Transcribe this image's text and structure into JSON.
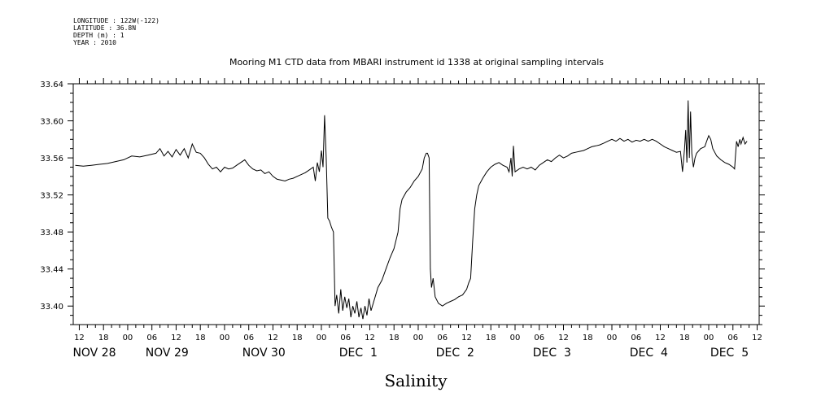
{
  "header": {
    "meta_lines": [
      "LONGITUDE : 122W(-122)",
      "LATITUDE : 36.8N",
      "DEPTH (m) : 1",
      "YEAR : 2010"
    ]
  },
  "chart_data": {
    "type": "line",
    "title": "Mooring M1 CTD data from MBARI instrument id 1338 at original sampling intervals",
    "xlabel": "Salinity",
    "ylabel": "",
    "ylim": [
      33.38,
      33.64
    ],
    "y_ticks": [
      33.4,
      33.44,
      33.48,
      33.52,
      33.56,
      33.6,
      33.64
    ],
    "y_tick_labels": [
      "33.40",
      "33.44",
      "33.48",
      "33.52",
      "33.56",
      "33.60",
      "33.64"
    ],
    "x_unit": "hours since Nov 28 00:00 (2010)",
    "xlim": [
      10.5,
      180.5
    ],
    "x_hour_ticks": [
      {
        "x": 12,
        "label": "12"
      },
      {
        "x": 18,
        "label": "18"
      },
      {
        "x": 24,
        "label": "00"
      },
      {
        "x": 30,
        "label": "06"
      },
      {
        "x": 36,
        "label": "12"
      },
      {
        "x": 42,
        "label": "18"
      },
      {
        "x": 48,
        "label": "00"
      },
      {
        "x": 54,
        "label": "06"
      },
      {
        "x": 60,
        "label": "12"
      },
      {
        "x": 66,
        "label": "18"
      },
      {
        "x": 72,
        "label": "00"
      },
      {
        "x": 78,
        "label": "06"
      },
      {
        "x": 84,
        "label": "12"
      },
      {
        "x": 90,
        "label": "18"
      },
      {
        "x": 96,
        "label": "00"
      },
      {
        "x": 102,
        "label": "06"
      },
      {
        "x": 108,
        "label": "12"
      },
      {
        "x": 114,
        "label": "18"
      },
      {
        "x": 120,
        "label": "00"
      },
      {
        "x": 126,
        "label": "06"
      },
      {
        "x": 132,
        "label": "12"
      },
      {
        "x": 138,
        "label": "18"
      },
      {
        "x": 144,
        "label": "00"
      },
      {
        "x": 150,
        "label": "06"
      },
      {
        "x": 156,
        "label": "12"
      },
      {
        "x": 162,
        "label": "18"
      },
      {
        "x": 168,
        "label": "00"
      },
      {
        "x": 174,
        "label": "06"
      },
      {
        "x": 180,
        "label": "12"
      }
    ],
    "x_date_labels": [
      {
        "x": 12,
        "label": "NOV 28"
      },
      {
        "x": 30,
        "label": "NOV 29"
      },
      {
        "x": 54,
        "label": "NOV 30"
      },
      {
        "x": 78,
        "label": "DEC  1"
      },
      {
        "x": 102,
        "label": "DEC  2"
      },
      {
        "x": 126,
        "label": "DEC  3"
      },
      {
        "x": 150,
        "label": "DEC  4"
      },
      {
        "x": 170,
        "label": "DEC  5"
      }
    ],
    "series": [
      {
        "color": "#000000",
        "points": [
          [
            11,
            33.552
          ],
          [
            13,
            33.551
          ],
          [
            15,
            33.552
          ],
          [
            17,
            33.553
          ],
          [
            19,
            33.554
          ],
          [
            21,
            33.556
          ],
          [
            23,
            33.558
          ],
          [
            25,
            33.562
          ],
          [
            27,
            33.561
          ],
          [
            29,
            33.563
          ],
          [
            31,
            33.565
          ],
          [
            32,
            33.57
          ],
          [
            33,
            33.562
          ],
          [
            34,
            33.567
          ],
          [
            35,
            33.561
          ],
          [
            36,
            33.569
          ],
          [
            37,
            33.563
          ],
          [
            38,
            33.57
          ],
          [
            39,
            33.56
          ],
          [
            40,
            33.575
          ],
          [
            41,
            33.566
          ],
          [
            42,
            33.565
          ],
          [
            43,
            33.56
          ],
          [
            44,
            33.553
          ],
          [
            45,
            33.548
          ],
          [
            46,
            33.55
          ],
          [
            47,
            33.545
          ],
          [
            48,
            33.55
          ],
          [
            49,
            33.548
          ],
          [
            50,
            33.549
          ],
          [
            51,
            33.552
          ],
          [
            52,
            33.555
          ],
          [
            53,
            33.558
          ],
          [
            54,
            33.552
          ],
          [
            55,
            33.548
          ],
          [
            56,
            33.546
          ],
          [
            57,
            33.547
          ],
          [
            58,
            33.543
          ],
          [
            59,
            33.545
          ],
          [
            60,
            33.54
          ],
          [
            61,
            33.537
          ],
          [
            62,
            33.536
          ],
          [
            63,
            33.535
          ],
          [
            64,
            33.537
          ],
          [
            65,
            33.538
          ],
          [
            66,
            33.54
          ],
          [
            67,
            33.542
          ],
          [
            68,
            33.544
          ],
          [
            69,
            33.547
          ],
          [
            70,
            33.55
          ],
          [
            70.5,
            33.535
          ],
          [
            71,
            33.555
          ],
          [
            71.5,
            33.545
          ],
          [
            72,
            33.568
          ],
          [
            72.4,
            33.55
          ],
          [
            72.8,
            33.606
          ],
          [
            73.2,
            33.56
          ],
          [
            73.6,
            33.495
          ],
          [
            74,
            33.492
          ],
          [
            74.5,
            33.485
          ],
          [
            75,
            33.48
          ],
          [
            75.4,
            33.4
          ],
          [
            75.8,
            33.412
          ],
          [
            76.3,
            33.392
          ],
          [
            76.8,
            33.418
          ],
          [
            77.3,
            33.395
          ],
          [
            77.8,
            33.41
          ],
          [
            78.3,
            33.398
          ],
          [
            78.8,
            33.408
          ],
          [
            79.3,
            33.388
          ],
          [
            79.8,
            33.4
          ],
          [
            80.3,
            33.392
          ],
          [
            80.8,
            33.405
          ],
          [
            81.3,
            33.388
          ],
          [
            81.8,
            33.398
          ],
          [
            82.3,
            33.386
          ],
          [
            82.8,
            33.4
          ],
          [
            83.3,
            33.39
          ],
          [
            83.8,
            33.408
          ],
          [
            84.3,
            33.395
          ],
          [
            85,
            33.405
          ],
          [
            86,
            33.42
          ],
          [
            87,
            33.428
          ],
          [
            88,
            33.44
          ],
          [
            89,
            33.452
          ],
          [
            90,
            33.462
          ],
          [
            91,
            33.48
          ],
          [
            91.5,
            33.505
          ],
          [
            92,
            33.515
          ],
          [
            93,
            33.523
          ],
          [
            94,
            33.528
          ],
          [
            95,
            33.535
          ],
          [
            96,
            33.54
          ],
          [
            97,
            33.548
          ],
          [
            97.5,
            33.56
          ],
          [
            98,
            33.565
          ],
          [
            98.3,
            33.565
          ],
          [
            98.7,
            33.56
          ],
          [
            99,
            33.44
          ],
          [
            99.3,
            33.42
          ],
          [
            99.7,
            33.43
          ],
          [
            100.2,
            33.41
          ],
          [
            101,
            33.403
          ],
          [
            102,
            33.4
          ],
          [
            103,
            33.403
          ],
          [
            104,
            33.405
          ],
          [
            105,
            33.407
          ],
          [
            106,
            33.41
          ],
          [
            107,
            33.412
          ],
          [
            108,
            33.418
          ],
          [
            108.5,
            33.425
          ],
          [
            109,
            33.43
          ],
          [
            109.5,
            33.47
          ],
          [
            110,
            33.505
          ],
          [
            110.5,
            33.52
          ],
          [
            111,
            33.53
          ],
          [
            112,
            33.538
          ],
          [
            113,
            33.545
          ],
          [
            114,
            33.55
          ],
          [
            115,
            33.553
          ],
          [
            116,
            33.555
          ],
          [
            117,
            33.552
          ],
          [
            118,
            33.55
          ],
          [
            118.5,
            33.545
          ],
          [
            119,
            33.56
          ],
          [
            119.3,
            33.54
          ],
          [
            119.6,
            33.573
          ],
          [
            120,
            33.545
          ],
          [
            121,
            33.548
          ],
          [
            122,
            33.55
          ],
          [
            123,
            33.548
          ],
          [
            124,
            33.55
          ],
          [
            125,
            33.547
          ],
          [
            126,
            33.552
          ],
          [
            127,
            33.555
          ],
          [
            128,
            33.558
          ],
          [
            129,
            33.556
          ],
          [
            130,
            33.56
          ],
          [
            131,
            33.563
          ],
          [
            132,
            33.56
          ],
          [
            133,
            33.562
          ],
          [
            134,
            33.565
          ],
          [
            135,
            33.566
          ],
          [
            136,
            33.567
          ],
          [
            137,
            33.568
          ],
          [
            138,
            33.57
          ],
          [
            139,
            33.572
          ],
          [
            140,
            33.573
          ],
          [
            141,
            33.574
          ],
          [
            142,
            33.576
          ],
          [
            143,
            33.578
          ],
          [
            144,
            33.58
          ],
          [
            145,
            33.578
          ],
          [
            146,
            33.581
          ],
          [
            147,
            33.578
          ],
          [
            148,
            33.58
          ],
          [
            149,
            33.577
          ],
          [
            150,
            33.579
          ],
          [
            151,
            33.578
          ],
          [
            152,
            33.58
          ],
          [
            153,
            33.578
          ],
          [
            154,
            33.58
          ],
          [
            155,
            33.578
          ],
          [
            156,
            33.575
          ],
          [
            157,
            33.572
          ],
          [
            158,
            33.57
          ],
          [
            159,
            33.568
          ],
          [
            160,
            33.566
          ],
          [
            161,
            33.567
          ],
          [
            161.5,
            33.545
          ],
          [
            162,
            33.57
          ],
          [
            162.3,
            33.59
          ],
          [
            162.6,
            33.555
          ],
          [
            162.9,
            33.622
          ],
          [
            163.2,
            33.56
          ],
          [
            163.5,
            33.61
          ],
          [
            163.8,
            33.565
          ],
          [
            164.2,
            33.55
          ],
          [
            164.6,
            33.56
          ],
          [
            165,
            33.565
          ],
          [
            166,
            33.57
          ],
          [
            167,
            33.572
          ],
          [
            167.5,
            33.578
          ],
          [
            168,
            33.584
          ],
          [
            168.5,
            33.58
          ],
          [
            169,
            33.57
          ],
          [
            170,
            33.562
          ],
          [
            171,
            33.558
          ],
          [
            172,
            33.555
          ],
          [
            173,
            33.553
          ],
          [
            174,
            33.55
          ],
          [
            174.4,
            33.548
          ],
          [
            174.6,
            33.56
          ],
          [
            174.9,
            33.578
          ],
          [
            175.3,
            33.572
          ],
          [
            175.7,
            33.58
          ],
          [
            176,
            33.575
          ],
          [
            176.5,
            33.582
          ],
          [
            177,
            33.575
          ],
          [
            177.5,
            33.578
          ]
        ]
      }
    ],
    "grid": false,
    "legend": "none"
  }
}
